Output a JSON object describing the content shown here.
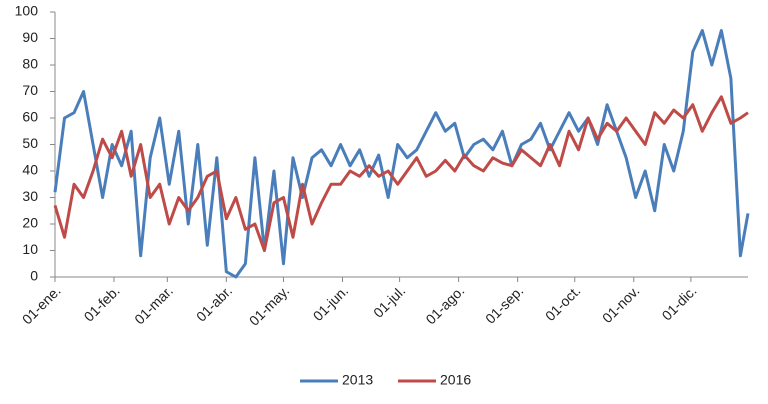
{
  "chart_data": {
    "type": "line",
    "x": [
      0,
      5,
      10,
      15,
      20,
      25,
      30,
      35,
      40,
      45,
      50,
      55,
      60,
      65,
      70,
      75,
      80,
      85,
      90,
      95,
      100,
      105,
      110,
      115,
      120,
      125,
      130,
      135,
      140,
      145,
      150,
      155,
      160,
      165,
      170,
      175,
      180,
      185,
      190,
      195,
      200,
      205,
      210,
      215,
      220,
      225,
      230,
      235,
      240,
      245,
      250,
      255,
      260,
      265,
      270,
      275,
      280,
      285,
      290,
      295,
      300,
      305,
      310,
      315,
      320,
      325,
      330,
      335,
      340,
      345,
      350,
      355,
      360,
      364
    ],
    "series": [
      {
        "name": "2013",
        "color": "#4a7ebb",
        "values": [
          32,
          60,
          62,
          70,
          50,
          30,
          50,
          42,
          55,
          8,
          45,
          60,
          35,
          55,
          20,
          50,
          12,
          45,
          2,
          0,
          5,
          45,
          10,
          40,
          5,
          45,
          30,
          45,
          48,
          42,
          50,
          42,
          48,
          38,
          46,
          30,
          50,
          45,
          48,
          55,
          62,
          55,
          58,
          45,
          50,
          52,
          48,
          55,
          42,
          50,
          52,
          58,
          48,
          55,
          62,
          55,
          60,
          50,
          65,
          55,
          45,
          30,
          40,
          25,
          50,
          40,
          55,
          85,
          93,
          80,
          93,
          75,
          8,
          24
        ]
      },
      {
        "name": "2016",
        "color": "#be4b48",
        "values": [
          27,
          15,
          35,
          30,
          40,
          52,
          45,
          55,
          38,
          50,
          30,
          35,
          20,
          30,
          25,
          30,
          38,
          40,
          22,
          30,
          18,
          20,
          10,
          28,
          30,
          15,
          35,
          20,
          28,
          35,
          35,
          40,
          38,
          42,
          38,
          40,
          35,
          40,
          45,
          38,
          40,
          44,
          40,
          46,
          42,
          40,
          45,
          43,
          42,
          48,
          45,
          42,
          50,
          42,
          55,
          48,
          60,
          52,
          58,
          55,
          60,
          55,
          50,
          62,
          58,
          63,
          60,
          65,
          55,
          62,
          68,
          58,
          60,
          62
        ]
      }
    ],
    "xlim": [
      0,
      364
    ],
    "xticks": [
      {
        "value": 0,
        "label": "01-ene."
      },
      {
        "value": 31,
        "label": "01-feb."
      },
      {
        "value": 59,
        "label": "01-mar."
      },
      {
        "value": 90,
        "label": "01-abr."
      },
      {
        "value": 120,
        "label": "01-may."
      },
      {
        "value": 151,
        "label": "01-jun."
      },
      {
        "value": 181,
        "label": "01-jul."
      },
      {
        "value": 212,
        "label": "01-ago."
      },
      {
        "value": 243,
        "label": "01-sep."
      },
      {
        "value": 273,
        "label": "01-oct."
      },
      {
        "value": 304,
        "label": "01-nov."
      },
      {
        "value": 334,
        "label": "01-dic."
      }
    ],
    "ylim": [
      0,
      100
    ],
    "yticks": [
      0,
      10,
      20,
      30,
      40,
      50,
      60,
      70,
      80,
      90,
      100
    ],
    "legend": "bottom"
  }
}
